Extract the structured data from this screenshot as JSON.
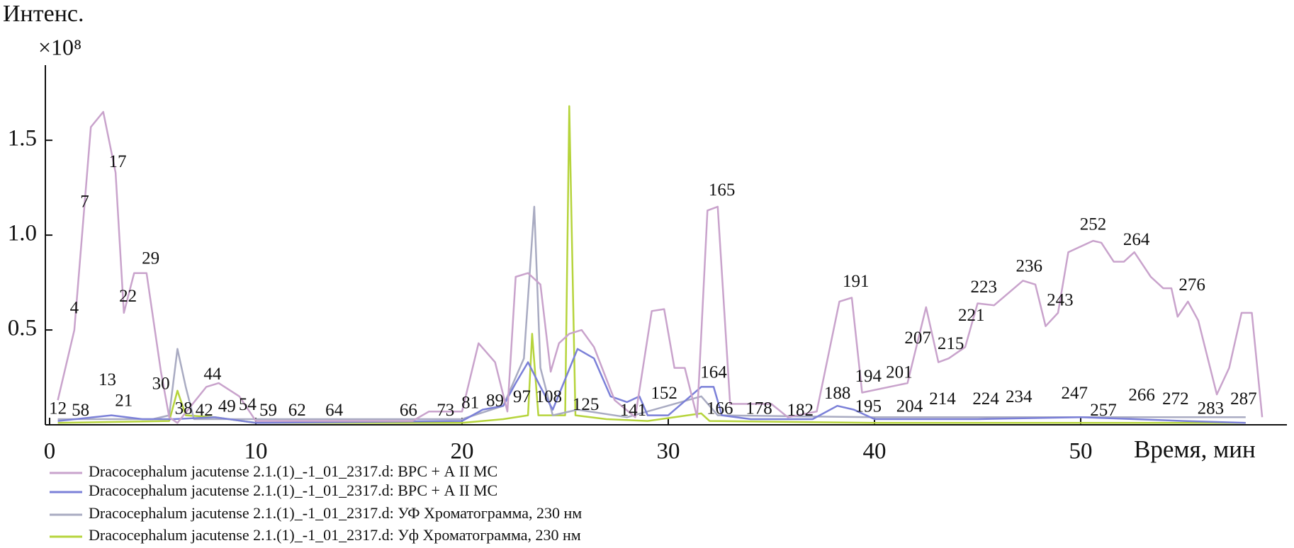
{
  "chart_data": {
    "type": "line",
    "y_label": "Интенс.",
    "y_unit": "×10⁸",
    "x_label": "Время, мин",
    "xlim": [
      0,
      60
    ],
    "xticks": [
      0,
      10,
      20,
      30,
      40,
      50
    ],
    "ylim": [
      0,
      1.9
    ],
    "yticks": [
      0.5,
      {
        "value": 1,
        "label": "1.0"
      },
      1.5
    ],
    "grid": false,
    "series": [
      {
        "name": "Dracocephalum jacutense 2.1.(1)_-1_01_2317.d: ВРС + А II МС",
        "color": "#c9a3cc",
        "x": [
          0.4,
          1.2,
          2.0,
          2.6,
          3.2,
          3.6,
          4.1,
          4.7,
          5.4,
          5.8,
          6.2,
          7.6,
          8.2,
          9.2,
          10,
          17.6,
          18.4,
          20,
          20.8,
          21.6,
          22.2,
          22.6,
          23.2,
          23.8,
          24.3,
          24.7,
          25.2,
          25.8,
          26.4,
          27.4,
          28.4,
          29.2,
          29.8,
          30.3,
          30.8,
          31.4,
          31.9,
          32.4,
          33,
          35,
          35.8,
          37.2,
          38.3,
          38.9,
          39.4,
          41.6,
          42.5,
          43.1,
          43.6,
          44.4,
          45,
          45.8,
          47.2,
          47.8,
          48.3,
          48.9,
          49.4,
          50.6,
          51,
          51.6,
          52.1,
          52.6,
          53.4,
          54,
          54.4,
          54.7,
          55.2,
          55.7,
          56.6,
          57.2,
          57.8,
          58.3,
          58.8
        ],
        "values": [
          0.13,
          0.5,
          1.57,
          1.65,
          1.33,
          0.59,
          0.8,
          0.8,
          0.28,
          0.04,
          0.01,
          0.2,
          0.22,
          0.15,
          0.02,
          0.02,
          0.07,
          0.07,
          0.43,
          0.33,
          0.07,
          0.78,
          0.8,
          0.74,
          0.28,
          0.43,
          0.48,
          0.5,
          0.41,
          0.13,
          0.04,
          0.6,
          0.61,
          0.3,
          0.3,
          0.04,
          1.13,
          1.15,
          0.11,
          0.11,
          0.04,
          0.07,
          0.65,
          0.67,
          0.17,
          0.22,
          0.62,
          0.33,
          0.35,
          0.41,
          0.64,
          0.63,
          0.76,
          0.74,
          0.52,
          0.59,
          0.91,
          0.97,
          0.96,
          0.86,
          0.86,
          0.91,
          0.78,
          0.72,
          0.72,
          0.57,
          0.65,
          0.55,
          0.16,
          0.3,
          0.59,
          0.59,
          0.04
        ]
      },
      {
        "name": "Dracocephalum jacutense 2.1.(1)_-1_01_2317.d: ВРС + А II МС",
        "color": "#7b80d8",
        "x": [
          0.4,
          3,
          4.5,
          6,
          8,
          10,
          20,
          21,
          22,
          22.6,
          23.2,
          23.8,
          24.4,
          25.6,
          26.4,
          27.2,
          28,
          28.6,
          29,
          30,
          31.6,
          32.2,
          32.6,
          34,
          37,
          38.2,
          39,
          40,
          45,
          50,
          55,
          58
        ],
        "values": [
          0.02,
          0.05,
          0.03,
          0.03,
          0.04,
          0.01,
          0.02,
          0.08,
          0.1,
          0.22,
          0.33,
          0.2,
          0.08,
          0.4,
          0.35,
          0.15,
          0.12,
          0.15,
          0.05,
          0.05,
          0.2,
          0.2,
          0.05,
          0.03,
          0.03,
          0.1,
          0.08,
          0.03,
          0.03,
          0.04,
          0.02,
          0.01
        ]
      },
      {
        "name": "Dracocephalum jacutense 2.1.(1)_-1_01_2317.d: УФ Хроматограмма, 230 нм",
        "color": "#a9abc2",
        "x": [
          0.4,
          5,
          5.8,
          6.2,
          6.6,
          7,
          20,
          22,
          23,
          23.5,
          23.8,
          24.4,
          25.6,
          28,
          31.6,
          32.4,
          40,
          50,
          58
        ],
        "values": [
          0.03,
          0.03,
          0.05,
          0.4,
          0.2,
          0.03,
          0.03,
          0.1,
          0.35,
          1.15,
          0.3,
          0.05,
          0.08,
          0.04,
          0.15,
          0.05,
          0.04,
          0.04,
          0.04
        ]
      },
      {
        "name": "Dracocephalum jacutense 2.1.(1)_-1_01_2317.d: Уф Хроматограмма, 230 нм",
        "color": "#b6d43c",
        "x": [
          0.4,
          5.8,
          6.2,
          6.6,
          8,
          10,
          20,
          22,
          23.2,
          23.4,
          23.7,
          25,
          25.2,
          25.5,
          27,
          29,
          31.6,
          32,
          40,
          58
        ],
        "values": [
          0.01,
          0.02,
          0.18,
          0.05,
          0.04,
          0.01,
          0.01,
          0.03,
          0.05,
          0.48,
          0.05,
          0.05,
          1.68,
          0.05,
          0.03,
          0.02,
          0.06,
          0.02,
          0.01,
          0.01
        ]
      }
    ],
    "annotations": [
      {
        "text": "12",
        "x": 0.4,
        "y": 0.08
      },
      {
        "text": "58",
        "x": 1.5,
        "y": 0.07
      },
      {
        "text": "4",
        "x": 1.2,
        "y": 0.61
      },
      {
        "text": "7",
        "x": 1.7,
        "y": 1.17
      },
      {
        "text": "17",
        "x": 3.3,
        "y": 1.38
      },
      {
        "text": "22",
        "x": 3.8,
        "y": 0.67
      },
      {
        "text": "29",
        "x": 4.9,
        "y": 0.87
      },
      {
        "text": "13",
        "x": 2.8,
        "y": 0.23
      },
      {
        "text": "21",
        "x": 3.6,
        "y": 0.12
      },
      {
        "text": "30",
        "x": 5.4,
        "y": 0.21
      },
      {
        "text": "38",
        "x": 6.5,
        "y": 0.08
      },
      {
        "text": "42",
        "x": 7.5,
        "y": 0.07
      },
      {
        "text": "44",
        "x": 7.9,
        "y": 0.26
      },
      {
        "text": "49",
        "x": 8.6,
        "y": 0.09
      },
      {
        "text": "54",
        "x": 9.6,
        "y": 0.1
      },
      {
        "text": "59",
        "x": 10.6,
        "y": 0.07
      },
      {
        "text": "62",
        "x": 12,
        "y": 0.07
      },
      {
        "text": "64",
        "x": 13.8,
        "y": 0.07
      },
      {
        "text": "66",
        "x": 17.4,
        "y": 0.07
      },
      {
        "text": "73",
        "x": 19.2,
        "y": 0.07
      },
      {
        "text": "81",
        "x": 20.4,
        "y": 0.11
      },
      {
        "text": "89",
        "x": 21.6,
        "y": 0.12
      },
      {
        "text": "97",
        "x": 22.9,
        "y": 0.14
      },
      {
        "text": "108",
        "x": 24.2,
        "y": 0.14
      },
      {
        "text": "125",
        "x": 26,
        "y": 0.1
      },
      {
        "text": "141",
        "x": 28.3,
        "y": 0.07
      },
      {
        "text": "152",
        "x": 29.8,
        "y": 0.16
      },
      {
        "text": "164",
        "x": 32.2,
        "y": 0.27
      },
      {
        "text": "165",
        "x": 32.6,
        "y": 1.23
      },
      {
        "text": "166",
        "x": 32.5,
        "y": 0.08
      },
      {
        "text": "178",
        "x": 34.4,
        "y": 0.08
      },
      {
        "text": "182",
        "x": 36.4,
        "y": 0.07
      },
      {
        "text": "188",
        "x": 38.2,
        "y": 0.16
      },
      {
        "text": "191",
        "x": 39.1,
        "y": 0.75
      },
      {
        "text": "194",
        "x": 39.7,
        "y": 0.25
      },
      {
        "text": "195",
        "x": 39.7,
        "y": 0.09
      },
      {
        "text": "201",
        "x": 41.2,
        "y": 0.27
      },
      {
        "text": "204",
        "x": 41.7,
        "y": 0.09
      },
      {
        "text": "207",
        "x": 42.1,
        "y": 0.45
      },
      {
        "text": "214",
        "x": 43.3,
        "y": 0.13
      },
      {
        "text": "215",
        "x": 43.7,
        "y": 0.42
      },
      {
        "text": "221",
        "x": 44.7,
        "y": 0.57
      },
      {
        "text": "223",
        "x": 45.3,
        "y": 0.72
      },
      {
        "text": "224",
        "x": 45.4,
        "y": 0.13
      },
      {
        "text": "234",
        "x": 47,
        "y": 0.14
      },
      {
        "text": "236",
        "x": 47.5,
        "y": 0.83
      },
      {
        "text": "243",
        "x": 49,
        "y": 0.65
      },
      {
        "text": "247",
        "x": 49.7,
        "y": 0.16
      },
      {
        "text": "252",
        "x": 50.6,
        "y": 1.05
      },
      {
        "text": "257",
        "x": 51.1,
        "y": 0.07
      },
      {
        "text": "264",
        "x": 52.7,
        "y": 0.97
      },
      {
        "text": "266",
        "x": 52.96,
        "y": 0.15
      },
      {
        "text": "272",
        "x": 54.6,
        "y": 0.13
      },
      {
        "text": "276",
        "x": 55.4,
        "y": 0.73
      },
      {
        "text": "283",
        "x": 56.3,
        "y": 0.08
      },
      {
        "text": "287",
        "x": 57.9,
        "y": 0.13
      }
    ]
  }
}
